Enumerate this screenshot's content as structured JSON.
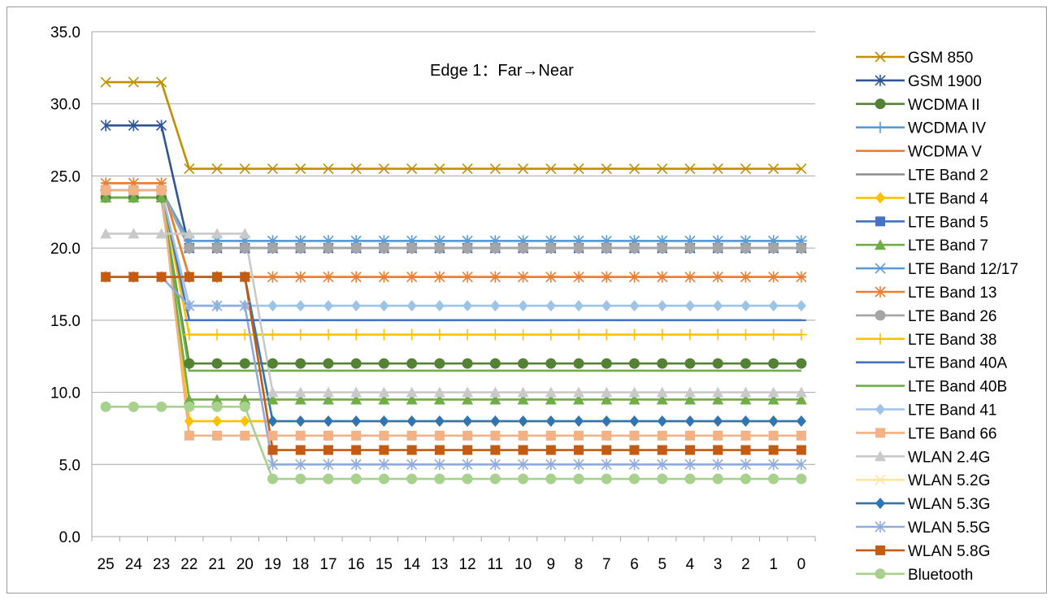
{
  "chart_data": {
    "type": "line",
    "title": "Edge 1：Far→Near",
    "xlabel": "",
    "ylabel": "",
    "x": [
      "25",
      "24",
      "23",
      "22",
      "21",
      "20",
      "19",
      "18",
      "17",
      "16",
      "15",
      "14",
      "13",
      "12",
      "11",
      "10",
      "9",
      "8",
      "7",
      "6",
      "5",
      "4",
      "3",
      "2",
      "1",
      "0"
    ],
    "ylim": [
      0,
      35
    ],
    "yticks": [
      "0.0",
      "5.0",
      "10.0",
      "15.0",
      "20.0",
      "25.0",
      "30.0",
      "35.0"
    ],
    "grid": "horizontal",
    "legend_position": "right",
    "series": [
      {
        "name": "GSM 850",
        "color": "#bf9000",
        "marker": "x",
        "values": [
          31.5,
          31.5,
          31.5,
          25.5,
          25.5,
          25.5,
          25.5,
          25.5,
          25.5,
          25.5,
          25.5,
          25.5,
          25.5,
          25.5,
          25.5,
          25.5,
          25.5,
          25.5,
          25.5,
          25.5,
          25.5,
          25.5,
          25.5,
          25.5,
          25.5,
          25.5
        ]
      },
      {
        "name": "GSM 1900",
        "color": "#2f5597",
        "marker": "star",
        "values": [
          28.5,
          28.5,
          28.5,
          20.0,
          20.0,
          20.0,
          20.0,
          20.0,
          20.0,
          20.0,
          20.0,
          20.0,
          20.0,
          20.0,
          20.0,
          20.0,
          20.0,
          20.0,
          20.0,
          20.0,
          20.0,
          20.0,
          20.0,
          20.0,
          20.0,
          20.0
        ]
      },
      {
        "name": "WCDMA II",
        "color": "#548235",
        "marker": "circle",
        "values": [
          23.5,
          23.5,
          23.5,
          12.0,
          12.0,
          12.0,
          12.0,
          12.0,
          12.0,
          12.0,
          12.0,
          12.0,
          12.0,
          12.0,
          12.0,
          12.0,
          12.0,
          12.0,
          12.0,
          12.0,
          12.0,
          12.0,
          12.0,
          12.0,
          12.0,
          12.0
        ]
      },
      {
        "name": "WCDMA IV",
        "color": "#5b9bd5",
        "marker": "plus",
        "values": [
          24.0,
          24.0,
          24.0,
          20.5,
          20.5,
          20.5,
          20.5,
          20.5,
          20.5,
          20.5,
          20.5,
          20.5,
          20.5,
          20.5,
          20.5,
          20.5,
          20.5,
          20.5,
          20.5,
          20.5,
          20.5,
          20.5,
          20.5,
          20.5,
          20.5,
          20.5
        ]
      },
      {
        "name": "WCDMA V",
        "color": "#ed7d31",
        "marker": "dash",
        "values": [
          24.5,
          24.5,
          24.5,
          18.0,
          18.0,
          18.0,
          18.0,
          18.0,
          18.0,
          18.0,
          18.0,
          18.0,
          18.0,
          18.0,
          18.0,
          18.0,
          18.0,
          18.0,
          18.0,
          18.0,
          18.0,
          18.0,
          18.0,
          18.0,
          18.0,
          18.0
        ]
      },
      {
        "name": "LTE Band 2",
        "color": "#8c8c8c",
        "marker": "none",
        "values": [
          24.0,
          24.0,
          24.0,
          20.0,
          20.0,
          20.0,
          20.0,
          20.0,
          20.0,
          20.0,
          20.0,
          20.0,
          20.0,
          20.0,
          20.0,
          20.0,
          20.0,
          20.0,
          20.0,
          20.0,
          20.0,
          20.0,
          20.0,
          20.0,
          20.0,
          20.0
        ]
      },
      {
        "name": "LTE Band 4",
        "color": "#ffc000",
        "marker": "diamond",
        "values": [
          24.0,
          24.0,
          24.0,
          8.0,
          8.0,
          8.0,
          8.0,
          8.0,
          8.0,
          8.0,
          8.0,
          8.0,
          8.0,
          8.0,
          8.0,
          8.0,
          8.0,
          8.0,
          8.0,
          8.0,
          8.0,
          8.0,
          8.0,
          8.0,
          8.0,
          8.0
        ]
      },
      {
        "name": "LTE Band 5",
        "color": "#4472c4",
        "marker": "square",
        "values": [
          24.0,
          24.0,
          24.0,
          20.0,
          20.0,
          20.0,
          20.0,
          20.0,
          20.0,
          20.0,
          20.0,
          20.0,
          20.0,
          20.0,
          20.0,
          20.0,
          20.0,
          20.0,
          20.0,
          20.0,
          20.0,
          20.0,
          20.0,
          20.0,
          20.0,
          20.0
        ]
      },
      {
        "name": "LTE Band 7",
        "color": "#70ad47",
        "marker": "triangle",
        "values": [
          23.5,
          23.5,
          23.5,
          9.5,
          9.5,
          9.5,
          9.5,
          9.5,
          9.5,
          9.5,
          9.5,
          9.5,
          9.5,
          9.5,
          9.5,
          9.5,
          9.5,
          9.5,
          9.5,
          9.5,
          9.5,
          9.5,
          9.5,
          9.5,
          9.5,
          9.5
        ]
      },
      {
        "name": "LTE Band 12/17",
        "color": "#5b9bd5",
        "marker": "x",
        "values": [
          24.0,
          24.0,
          24.0,
          20.5,
          20.5,
          20.5,
          20.5,
          20.5,
          20.5,
          20.5,
          20.5,
          20.5,
          20.5,
          20.5,
          20.5,
          20.5,
          20.5,
          20.5,
          20.5,
          20.5,
          20.5,
          20.5,
          20.5,
          20.5,
          20.5,
          20.5
        ]
      },
      {
        "name": "LTE Band 13",
        "color": "#ed7d31",
        "marker": "star",
        "values": [
          24.5,
          24.5,
          24.5,
          18.0,
          18.0,
          18.0,
          18.0,
          18.0,
          18.0,
          18.0,
          18.0,
          18.0,
          18.0,
          18.0,
          18.0,
          18.0,
          18.0,
          18.0,
          18.0,
          18.0,
          18.0,
          18.0,
          18.0,
          18.0,
          18.0,
          18.0
        ]
      },
      {
        "name": "LTE Band 26",
        "color": "#a5a5a5",
        "marker": "circle",
        "values": [
          24.0,
          24.0,
          24.0,
          20.0,
          20.0,
          20.0,
          20.0,
          20.0,
          20.0,
          20.0,
          20.0,
          20.0,
          20.0,
          20.0,
          20.0,
          20.0,
          20.0,
          20.0,
          20.0,
          20.0,
          20.0,
          20.0,
          20.0,
          20.0,
          20.0,
          20.0
        ]
      },
      {
        "name": "LTE Band 38",
        "color": "#ffc000",
        "marker": "plus",
        "values": [
          24.0,
          24.0,
          24.0,
          14.0,
          14.0,
          14.0,
          14.0,
          14.0,
          14.0,
          14.0,
          14.0,
          14.0,
          14.0,
          14.0,
          14.0,
          14.0,
          14.0,
          14.0,
          14.0,
          14.0,
          14.0,
          14.0,
          14.0,
          14.0,
          14.0,
          14.0
        ]
      },
      {
        "name": "LTE Band 40A",
        "color": "#4472c4",
        "marker": "dash",
        "values": [
          24.0,
          24.0,
          24.0,
          15.0,
          15.0,
          15.0,
          15.0,
          15.0,
          15.0,
          15.0,
          15.0,
          15.0,
          15.0,
          15.0,
          15.0,
          15.0,
          15.0,
          15.0,
          15.0,
          15.0,
          15.0,
          15.0,
          15.0,
          15.0,
          15.0,
          15.0
        ]
      },
      {
        "name": "LTE Band 40B",
        "color": "#70ad47",
        "marker": "none",
        "values": [
          23.5,
          23.5,
          23.5,
          11.5,
          11.5,
          11.5,
          11.5,
          11.5,
          11.5,
          11.5,
          11.5,
          11.5,
          11.5,
          11.5,
          11.5,
          11.5,
          11.5,
          11.5,
          11.5,
          11.5,
          11.5,
          11.5,
          11.5,
          11.5,
          11.5,
          11.5
        ]
      },
      {
        "name": "LTE Band 41",
        "color": "#9dc3e6",
        "marker": "diamond",
        "values": [
          24.0,
          24.0,
          24.0,
          16.0,
          16.0,
          16.0,
          16.0,
          16.0,
          16.0,
          16.0,
          16.0,
          16.0,
          16.0,
          16.0,
          16.0,
          16.0,
          16.0,
          16.0,
          16.0,
          16.0,
          16.0,
          16.0,
          16.0,
          16.0,
          16.0,
          16.0
        ]
      },
      {
        "name": "LTE Band 66",
        "color": "#f4b183",
        "marker": "square",
        "values": [
          24.0,
          24.0,
          24.0,
          7.0,
          7.0,
          7.0,
          7.0,
          7.0,
          7.0,
          7.0,
          7.0,
          7.0,
          7.0,
          7.0,
          7.0,
          7.0,
          7.0,
          7.0,
          7.0,
          7.0,
          7.0,
          7.0,
          7.0,
          7.0,
          7.0,
          7.0
        ]
      },
      {
        "name": "WLAN 2.4G",
        "color": "#c9c9c9",
        "marker": "triangle",
        "values": [
          21.0,
          21.0,
          21.0,
          21.0,
          21.0,
          21.0,
          10.0,
          10.0,
          10.0,
          10.0,
          10.0,
          10.0,
          10.0,
          10.0,
          10.0,
          10.0,
          10.0,
          10.0,
          10.0,
          10.0,
          10.0,
          10.0,
          10.0,
          10.0,
          10.0,
          10.0
        ]
      },
      {
        "name": "WLAN 5.2G",
        "color": "#ffe699",
        "marker": "x",
        "values": [
          18.0,
          18.0,
          18.0,
          18.0,
          18.0,
          18.0,
          6.0,
          6.0,
          6.0,
          6.0,
          6.0,
          6.0,
          6.0,
          6.0,
          6.0,
          6.0,
          6.0,
          6.0,
          6.0,
          6.0,
          6.0,
          6.0,
          6.0,
          6.0,
          6.0,
          6.0
        ]
      },
      {
        "name": "WLAN 5.3G",
        "color": "#2e75b6",
        "marker": "diamond",
        "values": [
          18.0,
          18.0,
          18.0,
          18.0,
          18.0,
          18.0,
          8.0,
          8.0,
          8.0,
          8.0,
          8.0,
          8.0,
          8.0,
          8.0,
          8.0,
          8.0,
          8.0,
          8.0,
          8.0,
          8.0,
          8.0,
          8.0,
          8.0,
          8.0,
          8.0,
          8.0
        ]
      },
      {
        "name": "WLAN 5.5G",
        "color": "#8faadc",
        "marker": "star",
        "values": [
          18.0,
          18.0,
          18.0,
          16.0,
          16.0,
          16.0,
          5.0,
          5.0,
          5.0,
          5.0,
          5.0,
          5.0,
          5.0,
          5.0,
          5.0,
          5.0,
          5.0,
          5.0,
          5.0,
          5.0,
          5.0,
          5.0,
          5.0,
          5.0,
          5.0,
          5.0
        ]
      },
      {
        "name": "WLAN 5.8G",
        "color": "#c55a11",
        "marker": "square",
        "values": [
          18.0,
          18.0,
          18.0,
          18.0,
          18.0,
          18.0,
          6.0,
          6.0,
          6.0,
          6.0,
          6.0,
          6.0,
          6.0,
          6.0,
          6.0,
          6.0,
          6.0,
          6.0,
          6.0,
          6.0,
          6.0,
          6.0,
          6.0,
          6.0,
          6.0,
          6.0
        ]
      },
      {
        "name": "Bluetooth",
        "color": "#a9d18e",
        "marker": "circle",
        "values": [
          9.0,
          9.0,
          9.0,
          9.0,
          9.0,
          9.0,
          4.0,
          4.0,
          4.0,
          4.0,
          4.0,
          4.0,
          4.0,
          4.0,
          4.0,
          4.0,
          4.0,
          4.0,
          4.0,
          4.0,
          4.0,
          4.0,
          4.0,
          4.0,
          4.0,
          4.0
        ]
      }
    ]
  }
}
